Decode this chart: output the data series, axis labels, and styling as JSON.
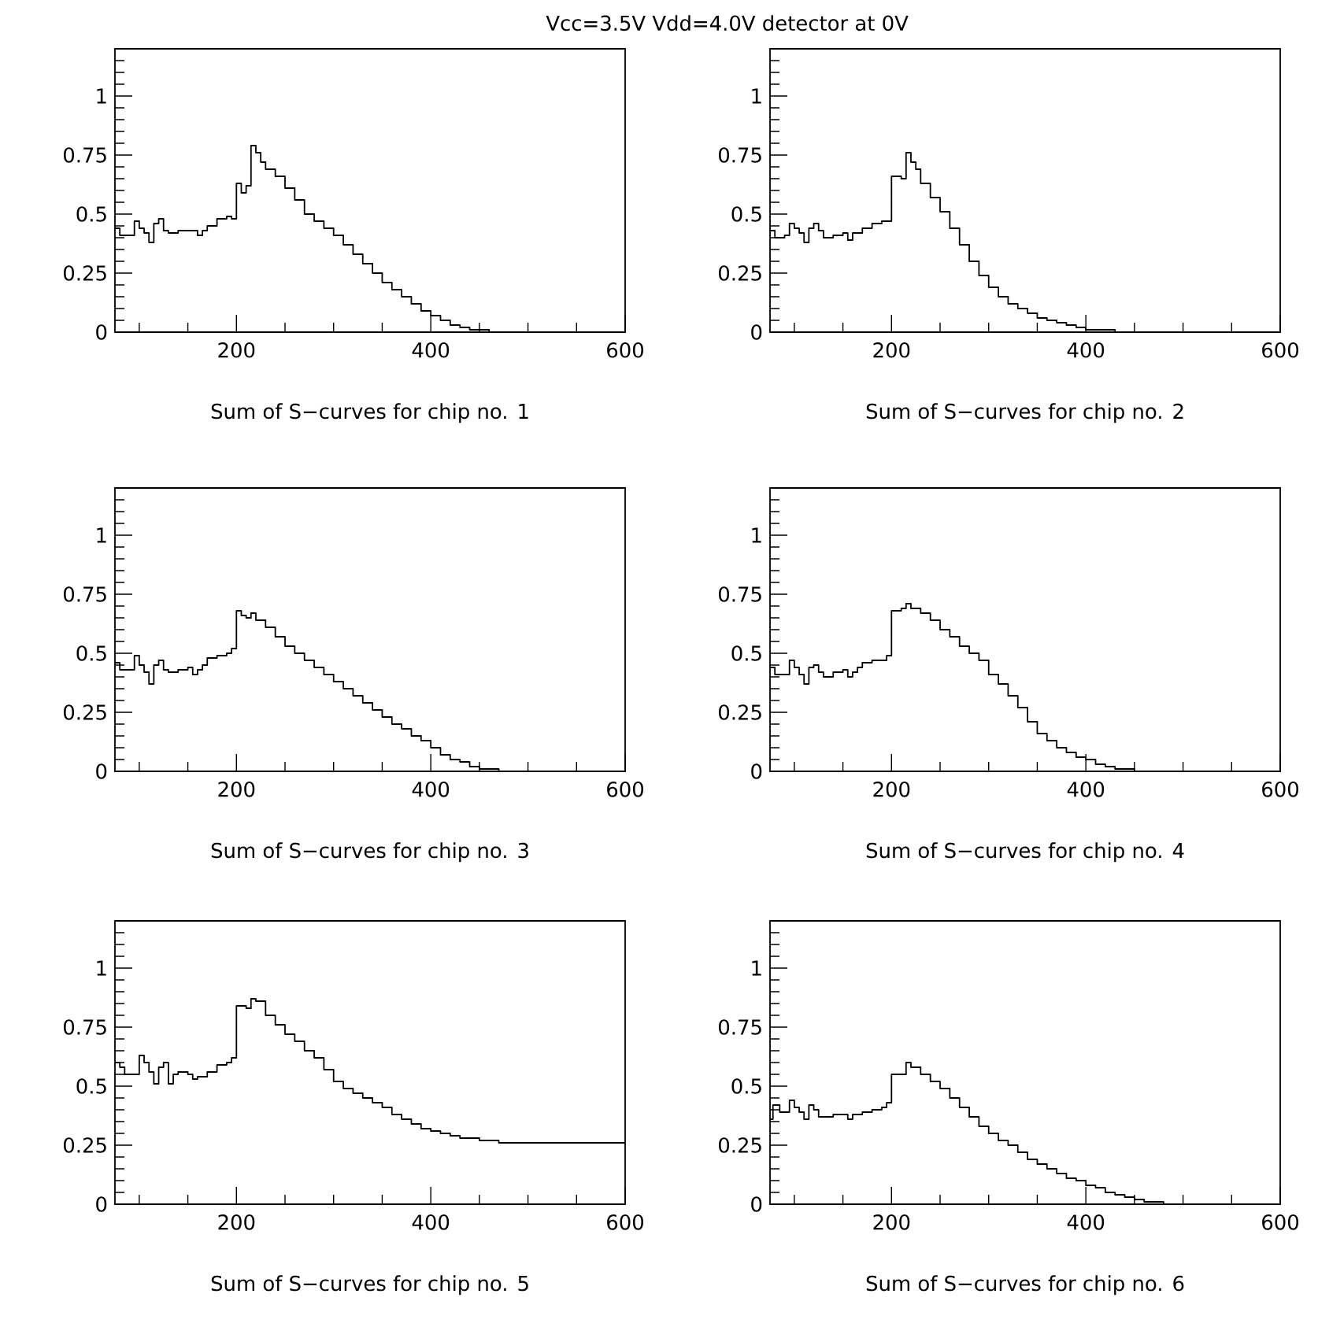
{
  "chart_data": [
    {
      "type": "step",
      "title": "Vcc=3.5V Vdd=4.0V detector at 0V",
      "xlabel": "Sum of S−curves for chip no. 1",
      "color": "#000000",
      "xlim": [
        75,
        600
      ],
      "ylim": [
        0,
        1.2
      ],
      "xticks": [
        {
          "value": 100,
          "label": null
        },
        {
          "value": 150,
          "label": null
        },
        200,
        {
          "value": 250,
          "label": null
        },
        {
          "value": 300,
          "label": null
        },
        {
          "value": 350,
          "label": null
        },
        400,
        {
          "value": 450,
          "label": null
        },
        {
          "value": 500,
          "label": null
        },
        {
          "value": 550,
          "label": null
        },
        600
      ],
      "yticks": [
        0,
        {
          "value": 0.05,
          "label": null
        },
        {
          "value": 0.1,
          "label": null
        },
        {
          "value": 0.15,
          "label": null
        },
        {
          "value": 0.2,
          "label": null
        },
        0.25,
        {
          "value": 0.3,
          "label": null
        },
        {
          "value": 0.35,
          "label": null
        },
        {
          "value": 0.4,
          "label": null
        },
        {
          "value": 0.45,
          "label": null
        },
        0.5,
        {
          "value": 0.55,
          "label": null
        },
        {
          "value": 0.6,
          "label": null
        },
        {
          "value": 0.65,
          "label": null
        },
        {
          "value": 0.7,
          "label": null
        },
        0.75,
        {
          "value": 0.8,
          "label": null
        },
        {
          "value": 0.85,
          "label": null
        },
        {
          "value": 0.9,
          "label": null
        },
        {
          "value": 0.95,
          "label": null
        },
        1,
        {
          "value": 1.05,
          "label": null
        },
        {
          "value": 1.1,
          "label": null
        },
        {
          "value": 1.15,
          "label": null
        }
      ],
      "x": [
        75,
        80,
        90,
        95,
        100,
        105,
        110,
        115,
        120,
        125,
        130,
        140,
        150,
        160,
        165,
        170,
        180,
        190,
        195,
        200,
        205,
        210,
        215,
        220,
        225,
        230,
        240,
        250,
        260,
        270,
        280,
        290,
        300,
        310,
        320,
        330,
        340,
        350,
        360,
        370,
        380,
        390,
        400,
        410,
        420,
        430,
        440,
        450,
        460,
        470,
        600
      ],
      "values": [
        0.44,
        0.41,
        0.41,
        0.47,
        0.44,
        0.42,
        0.38,
        0.46,
        0.48,
        0.43,
        0.42,
        0.43,
        0.43,
        0.41,
        0.43,
        0.45,
        0.48,
        0.49,
        0.48,
        0.63,
        0.59,
        0.62,
        0.79,
        0.76,
        0.72,
        0.69,
        0.66,
        0.61,
        0.56,
        0.5,
        0.47,
        0.44,
        0.41,
        0.37,
        0.33,
        0.29,
        0.25,
        0.21,
        0.18,
        0.15,
        0.12,
        0.09,
        0.07,
        0.05,
        0.03,
        0.02,
        0.01,
        0.01,
        0.0,
        0.0,
        0.0
      ]
    },
    {
      "type": "step",
      "xlabel": "Sum of S−curves for chip no. 2",
      "color": "#000000",
      "xlim": [
        75,
        600
      ],
      "ylim": [
        0,
        1.2
      ],
      "xticks": [
        {
          "value": 100,
          "label": null
        },
        {
          "value": 150,
          "label": null
        },
        200,
        {
          "value": 250,
          "label": null
        },
        {
          "value": 300,
          "label": null
        },
        {
          "value": 350,
          "label": null
        },
        400,
        {
          "value": 450,
          "label": null
        },
        {
          "value": 500,
          "label": null
        },
        {
          "value": 550,
          "label": null
        },
        600
      ],
      "yticks": [
        0,
        {
          "value": 0.05,
          "label": null
        },
        {
          "value": 0.1,
          "label": null
        },
        {
          "value": 0.15,
          "label": null
        },
        {
          "value": 0.2,
          "label": null
        },
        0.25,
        {
          "value": 0.3,
          "label": null
        },
        {
          "value": 0.35,
          "label": null
        },
        {
          "value": 0.4,
          "label": null
        },
        {
          "value": 0.45,
          "label": null
        },
        0.5,
        {
          "value": 0.55,
          "label": null
        },
        {
          "value": 0.6,
          "label": null
        },
        {
          "value": 0.65,
          "label": null
        },
        {
          "value": 0.7,
          "label": null
        },
        0.75,
        {
          "value": 0.8,
          "label": null
        },
        {
          "value": 0.85,
          "label": null
        },
        {
          "value": 0.9,
          "label": null
        },
        {
          "value": 0.95,
          "label": null
        },
        1,
        {
          "value": 1.05,
          "label": null
        },
        {
          "value": 1.1,
          "label": null
        },
        {
          "value": 1.15,
          "label": null
        }
      ],
      "x": [
        75,
        80,
        90,
        95,
        100,
        105,
        110,
        115,
        120,
        125,
        130,
        140,
        150,
        155,
        160,
        170,
        180,
        190,
        200,
        210,
        215,
        220,
        225,
        230,
        240,
        250,
        260,
        270,
        280,
        290,
        300,
        310,
        320,
        330,
        340,
        350,
        360,
        370,
        380,
        390,
        400,
        410,
        420,
        430,
        440,
        450,
        600
      ],
      "values": [
        0.43,
        0.4,
        0.41,
        0.46,
        0.44,
        0.42,
        0.38,
        0.44,
        0.46,
        0.43,
        0.4,
        0.41,
        0.42,
        0.39,
        0.42,
        0.44,
        0.46,
        0.47,
        0.66,
        0.65,
        0.76,
        0.72,
        0.69,
        0.63,
        0.57,
        0.51,
        0.44,
        0.37,
        0.3,
        0.24,
        0.19,
        0.15,
        0.12,
        0.1,
        0.08,
        0.06,
        0.05,
        0.04,
        0.03,
        0.02,
        0.01,
        0.01,
        0.01,
        0.0,
        0.0,
        0.0,
        0.0
      ]
    },
    {
      "type": "step",
      "xlabel": "Sum of S−curves for chip no. 3",
      "color": "#000000",
      "xlim": [
        75,
        600
      ],
      "ylim": [
        0,
        1.2
      ],
      "xticks": [
        {
          "value": 100,
          "label": null
        },
        {
          "value": 150,
          "label": null
        },
        200,
        {
          "value": 250,
          "label": null
        },
        {
          "value": 300,
          "label": null
        },
        {
          "value": 350,
          "label": null
        },
        400,
        {
          "value": 450,
          "label": null
        },
        {
          "value": 500,
          "label": null
        },
        {
          "value": 550,
          "label": null
        },
        600
      ],
      "yticks": [
        0,
        {
          "value": 0.05,
          "label": null
        },
        {
          "value": 0.1,
          "label": null
        },
        {
          "value": 0.15,
          "label": null
        },
        {
          "value": 0.2,
          "label": null
        },
        0.25,
        {
          "value": 0.3,
          "label": null
        },
        {
          "value": 0.35,
          "label": null
        },
        {
          "value": 0.4,
          "label": null
        },
        {
          "value": 0.45,
          "label": null
        },
        0.5,
        {
          "value": 0.55,
          "label": null
        },
        {
          "value": 0.6,
          "label": null
        },
        {
          "value": 0.65,
          "label": null
        },
        {
          "value": 0.7,
          "label": null
        },
        0.75,
        {
          "value": 0.8,
          "label": null
        },
        {
          "value": 0.85,
          "label": null
        },
        {
          "value": 0.9,
          "label": null
        },
        {
          "value": 0.95,
          "label": null
        },
        1,
        {
          "value": 1.05,
          "label": null
        },
        {
          "value": 1.1,
          "label": null
        },
        {
          "value": 1.15,
          "label": null
        }
      ],
      "x": [
        75,
        80,
        90,
        95,
        100,
        105,
        110,
        115,
        120,
        125,
        130,
        140,
        150,
        155,
        160,
        165,
        170,
        180,
        190,
        195,
        200,
        205,
        210,
        215,
        220,
        230,
        240,
        250,
        260,
        270,
        280,
        290,
        300,
        310,
        320,
        330,
        340,
        350,
        360,
        370,
        380,
        390,
        400,
        410,
        420,
        430,
        440,
        450,
        460,
        470,
        480,
        600
      ],
      "values": [
        0.46,
        0.43,
        0.43,
        0.49,
        0.45,
        0.42,
        0.37,
        0.45,
        0.47,
        0.43,
        0.42,
        0.43,
        0.44,
        0.41,
        0.43,
        0.45,
        0.48,
        0.49,
        0.5,
        0.52,
        0.68,
        0.66,
        0.65,
        0.67,
        0.64,
        0.61,
        0.57,
        0.53,
        0.5,
        0.47,
        0.44,
        0.41,
        0.38,
        0.35,
        0.32,
        0.29,
        0.26,
        0.23,
        0.2,
        0.18,
        0.15,
        0.13,
        0.1,
        0.07,
        0.05,
        0.04,
        0.02,
        0.01,
        0.01,
        0.0,
        0.0,
        0.0
      ]
    },
    {
      "type": "step",
      "xlabel": "Sum of S−curves for chip no. 4",
      "color": "#000000",
      "xlim": [
        75,
        600
      ],
      "ylim": [
        0,
        1.2
      ],
      "xticks": [
        {
          "value": 100,
          "label": null
        },
        {
          "value": 150,
          "label": null
        },
        200,
        {
          "value": 250,
          "label": null
        },
        {
          "value": 300,
          "label": null
        },
        {
          "value": 350,
          "label": null
        },
        400,
        {
          "value": 450,
          "label": null
        },
        {
          "value": 500,
          "label": null
        },
        {
          "value": 550,
          "label": null
        },
        600
      ],
      "yticks": [
        0,
        {
          "value": 0.05,
          "label": null
        },
        {
          "value": 0.1,
          "label": null
        },
        {
          "value": 0.15,
          "label": null
        },
        {
          "value": 0.2,
          "label": null
        },
        0.25,
        {
          "value": 0.3,
          "label": null
        },
        {
          "value": 0.35,
          "label": null
        },
        {
          "value": 0.4,
          "label": null
        },
        {
          "value": 0.45,
          "label": null
        },
        0.5,
        {
          "value": 0.55,
          "label": null
        },
        {
          "value": 0.6,
          "label": null
        },
        {
          "value": 0.65,
          "label": null
        },
        {
          "value": 0.7,
          "label": null
        },
        0.75,
        {
          "value": 0.8,
          "label": null
        },
        {
          "value": 0.85,
          "label": null
        },
        {
          "value": 0.9,
          "label": null
        },
        {
          "value": 0.95,
          "label": null
        },
        1,
        {
          "value": 1.05,
          "label": null
        },
        {
          "value": 1.1,
          "label": null
        },
        {
          "value": 1.15,
          "label": null
        }
      ],
      "x": [
        75,
        80,
        90,
        95,
        100,
        105,
        110,
        115,
        120,
        125,
        130,
        140,
        150,
        155,
        160,
        165,
        170,
        180,
        190,
        195,
        200,
        210,
        215,
        220,
        230,
        240,
        250,
        260,
        270,
        280,
        290,
        300,
        310,
        320,
        330,
        340,
        350,
        360,
        370,
        380,
        390,
        400,
        410,
        420,
        430,
        440,
        450,
        460,
        470,
        500,
        600
      ],
      "values": [
        0.44,
        0.41,
        0.41,
        0.47,
        0.44,
        0.41,
        0.37,
        0.44,
        0.45,
        0.42,
        0.4,
        0.42,
        0.43,
        0.4,
        0.42,
        0.44,
        0.46,
        0.47,
        0.47,
        0.49,
        0.68,
        0.69,
        0.71,
        0.69,
        0.67,
        0.64,
        0.6,
        0.57,
        0.53,
        0.5,
        0.47,
        0.41,
        0.37,
        0.32,
        0.27,
        0.21,
        0.16,
        0.13,
        0.1,
        0.08,
        0.06,
        0.05,
        0.03,
        0.02,
        0.01,
        0.01,
        0.0,
        0.0,
        0.0,
        0.0,
        0.0
      ]
    },
    {
      "type": "step",
      "xlabel": "Sum of S−curves for chip no. 5",
      "color": "#000000",
      "xlim": [
        75,
        600
      ],
      "ylim": [
        0,
        1.2
      ],
      "xticks": [
        {
          "value": 100,
          "label": null
        },
        {
          "value": 150,
          "label": null
        },
        200,
        {
          "value": 250,
          "label": null
        },
        {
          "value": 300,
          "label": null
        },
        {
          "value": 350,
          "label": null
        },
        400,
        {
          "value": 450,
          "label": null
        },
        {
          "value": 500,
          "label": null
        },
        {
          "value": 550,
          "label": null
        },
        600
      ],
      "yticks": [
        0,
        {
          "value": 0.05,
          "label": null
        },
        {
          "value": 0.1,
          "label": null
        },
        {
          "value": 0.15,
          "label": null
        },
        {
          "value": 0.2,
          "label": null
        },
        0.25,
        {
          "value": 0.3,
          "label": null
        },
        {
          "value": 0.35,
          "label": null
        },
        {
          "value": 0.4,
          "label": null
        },
        {
          "value": 0.45,
          "label": null
        },
        0.5,
        {
          "value": 0.55,
          "label": null
        },
        {
          "value": 0.6,
          "label": null
        },
        {
          "value": 0.65,
          "label": null
        },
        {
          "value": 0.7,
          "label": null
        },
        0.75,
        {
          "value": 0.8,
          "label": null
        },
        {
          "value": 0.85,
          "label": null
        },
        {
          "value": 0.9,
          "label": null
        },
        {
          "value": 0.95,
          "label": null
        },
        1,
        {
          "value": 1.05,
          "label": null
        },
        {
          "value": 1.1,
          "label": null
        },
        {
          "value": 1.15,
          "label": null
        }
      ],
      "x": [
        75,
        80,
        85,
        90,
        100,
        105,
        110,
        115,
        120,
        125,
        130,
        135,
        140,
        150,
        155,
        160,
        170,
        180,
        190,
        195,
        200,
        210,
        215,
        220,
        230,
        240,
        250,
        260,
        270,
        280,
        290,
        300,
        310,
        320,
        330,
        340,
        350,
        360,
        370,
        380,
        390,
        400,
        410,
        420,
        430,
        440,
        450,
        470,
        600
      ],
      "values": [
        0.6,
        0.58,
        0.55,
        0.55,
        0.63,
        0.6,
        0.56,
        0.51,
        0.58,
        0.6,
        0.51,
        0.55,
        0.56,
        0.55,
        0.53,
        0.54,
        0.56,
        0.59,
        0.6,
        0.62,
        0.84,
        0.83,
        0.87,
        0.86,
        0.8,
        0.76,
        0.72,
        0.69,
        0.65,
        0.62,
        0.57,
        0.52,
        0.49,
        0.47,
        0.45,
        0.43,
        0.41,
        0.38,
        0.36,
        0.34,
        0.32,
        0.31,
        0.3,
        0.29,
        0.28,
        0.28,
        0.27,
        0.26,
        0.26
      ]
    },
    {
      "type": "step",
      "xlabel": "Sum of S−curves for chip no. 6",
      "color": "#000000",
      "xlim": [
        75,
        600
      ],
      "ylim": [
        0,
        1.2
      ],
      "xticks": [
        {
          "value": 100,
          "label": null
        },
        {
          "value": 150,
          "label": null
        },
        200,
        {
          "value": 250,
          "label": null
        },
        {
          "value": 300,
          "label": null
        },
        {
          "value": 350,
          "label": null
        },
        400,
        {
          "value": 450,
          "label": null
        },
        {
          "value": 500,
          "label": null
        },
        {
          "value": 550,
          "label": null
        },
        600
      ],
      "yticks": [
        0,
        {
          "value": 0.05,
          "label": null
        },
        {
          "value": 0.1,
          "label": null
        },
        {
          "value": 0.15,
          "label": null
        },
        {
          "value": 0.2,
          "label": null
        },
        0.25,
        {
          "value": 0.3,
          "label": null
        },
        {
          "value": 0.35,
          "label": null
        },
        {
          "value": 0.4,
          "label": null
        },
        {
          "value": 0.45,
          "label": null
        },
        0.5,
        {
          "value": 0.55,
          "label": null
        },
        {
          "value": 0.6,
          "label": null
        },
        {
          "value": 0.65,
          "label": null
        },
        {
          "value": 0.7,
          "label": null
        },
        0.75,
        {
          "value": 0.8,
          "label": null
        },
        {
          "value": 0.85,
          "label": null
        },
        {
          "value": 0.9,
          "label": null
        },
        {
          "value": 0.95,
          "label": null
        },
        1,
        {
          "value": 1.05,
          "label": null
        },
        {
          "value": 1.1,
          "label": null
        },
        {
          "value": 1.15,
          "label": null
        }
      ],
      "x": [
        75,
        78,
        85,
        95,
        100,
        105,
        110,
        115,
        120,
        125,
        140,
        150,
        155,
        160,
        170,
        180,
        190,
        195,
        200,
        210,
        215,
        220,
        230,
        240,
        250,
        260,
        270,
        280,
        290,
        300,
        310,
        320,
        330,
        340,
        350,
        360,
        370,
        380,
        390,
        400,
        410,
        420,
        430,
        440,
        450,
        460,
        470,
        480,
        490,
        500,
        600
      ],
      "values": [
        0.36,
        0.42,
        0.39,
        0.44,
        0.41,
        0.39,
        0.36,
        0.42,
        0.4,
        0.37,
        0.38,
        0.38,
        0.36,
        0.38,
        0.39,
        0.4,
        0.41,
        0.43,
        0.55,
        0.55,
        0.6,
        0.58,
        0.55,
        0.52,
        0.49,
        0.45,
        0.41,
        0.37,
        0.33,
        0.3,
        0.27,
        0.25,
        0.22,
        0.19,
        0.17,
        0.15,
        0.13,
        0.11,
        0.1,
        0.08,
        0.07,
        0.05,
        0.04,
        0.03,
        0.02,
        0.01,
        0.01,
        0.0,
        0.0,
        0.0,
        0.0
      ]
    }
  ]
}
